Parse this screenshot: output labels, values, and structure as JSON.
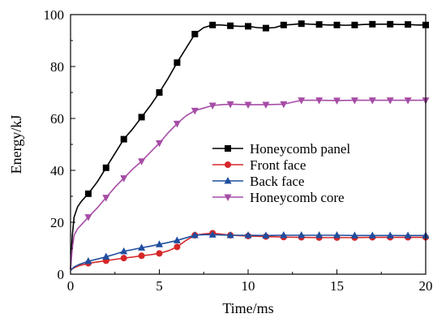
{
  "chart_data": {
    "type": "line",
    "xlabel": "Time/ms",
    "ylabel": "Energy/kJ",
    "xlim": [
      0,
      20
    ],
    "ylim": [
      0,
      100
    ],
    "xticks": [
      0,
      5,
      10,
      15,
      20
    ],
    "yticks": [
      0,
      20,
      40,
      60,
      80,
      100
    ],
    "legend_position": "center-right",
    "series": [
      {
        "name": "Honeycomb panel",
        "color": "#000000",
        "marker": "square",
        "x": [
          0,
          0.1,
          0.2,
          0.4,
          0.6,
          0.8,
          1,
          1.5,
          2,
          2.5,
          3,
          3.5,
          4,
          4.5,
          5,
          5.5,
          6,
          6.5,
          7,
          7.5,
          8,
          8.5,
          9,
          9.5,
          10,
          10.5,
          11,
          11.5,
          12,
          12.5,
          13,
          13.5,
          14,
          14.5,
          15,
          15.5,
          16,
          16.5,
          17,
          17.5,
          18,
          18.5,
          19,
          19.5,
          20
        ],
        "y": [
          2,
          15,
          22,
          26,
          28,
          29.5,
          31,
          35.5,
          41,
          46.5,
          52,
          56,
          60.5,
          65,
          70,
          75.5,
          81.5,
          87,
          92.5,
          95,
          96,
          96,
          95.7,
          95.5,
          95.5,
          95,
          94.8,
          95,
          96,
          96.2,
          96.5,
          96.3,
          96.2,
          96,
          96,
          95.9,
          96,
          96.2,
          96.3,
          96.3,
          96.3,
          96.2,
          96.2,
          96,
          96
        ],
        "marker_x": [
          1,
          2,
          3,
          4,
          5,
          6,
          7,
          8,
          9,
          10,
          11,
          12,
          13,
          14,
          15,
          16,
          17,
          18,
          19,
          20
        ],
        "marker_y": [
          31,
          41,
          52,
          60.5,
          70,
          81.5,
          92.5,
          96,
          95.7,
          95.5,
          94.8,
          96,
          96.5,
          96.2,
          96,
          96,
          96.3,
          96.3,
          96.2,
          96
        ]
      },
      {
        "name": "Front face",
        "color": "#d62728",
        "marker": "circle",
        "x": [
          0,
          0.2,
          0.5,
          1,
          1.5,
          2,
          2.5,
          3,
          3.5,
          4,
          4.5,
          5,
          5.5,
          6,
          6.5,
          7,
          7.5,
          8,
          8.5,
          9,
          10,
          11,
          12,
          13,
          14,
          15,
          16,
          17,
          18,
          19,
          20
        ],
        "y": [
          1.5,
          2.5,
          3.3,
          4.2,
          4.7,
          5.2,
          5.7,
          6.2,
          6.6,
          7.1,
          7.5,
          8.0,
          9.0,
          10.5,
          13,
          15,
          15.5,
          15.8,
          15.4,
          15,
          14.7,
          14.5,
          14.3,
          14.2,
          14.1,
          14.1,
          14.1,
          14.2,
          14.2,
          14.2,
          14.2
        ],
        "marker_x": [
          1,
          2,
          3,
          4,
          5,
          6,
          7,
          8,
          9,
          10,
          11,
          12,
          13,
          14,
          15,
          16,
          17,
          18,
          19,
          20
        ],
        "marker_y": [
          4.2,
          5.2,
          6.2,
          7.1,
          8.0,
          10.5,
          15,
          15.8,
          15,
          14.7,
          14.5,
          14.3,
          14.2,
          14.1,
          14.1,
          14.1,
          14.2,
          14.2,
          14.2,
          14.2
        ]
      },
      {
        "name": "Back face",
        "color": "#1f4e9e",
        "marker": "triangle-up",
        "x": [
          0,
          0.2,
          0.5,
          1,
          1.5,
          2,
          2.5,
          3,
          3.5,
          4,
          4.5,
          5,
          5.5,
          6,
          6.5,
          7,
          7.5,
          8,
          9,
          10,
          11,
          12,
          13,
          14,
          15,
          16,
          17,
          18,
          19,
          20
        ],
        "y": [
          1.5,
          2.8,
          3.8,
          5.0,
          5.8,
          6.7,
          7.7,
          8.8,
          9.5,
          10.2,
          10.8,
          11.5,
          12.2,
          13,
          14,
          15,
          15.2,
          15.2,
          15.0,
          15.0,
          14.9,
          15.0,
          15.0,
          15.0,
          15.0,
          14.9,
          14.9,
          14.9,
          14.9,
          14.9
        ],
        "marker_x": [
          1,
          2,
          3,
          4,
          5,
          6,
          7,
          8,
          9,
          10,
          11,
          12,
          13,
          14,
          15,
          16,
          17,
          18,
          19,
          20
        ],
        "marker_y": [
          5.0,
          6.7,
          8.8,
          10.2,
          11.5,
          13,
          15,
          15.2,
          15.0,
          15.0,
          14.9,
          15.0,
          15.0,
          15.0,
          15.0,
          14.9,
          14.9,
          14.9,
          14.9,
          14.9
        ]
      },
      {
        "name": "Honeycomb core",
        "color": "#a64ca6",
        "marker": "triangle-down",
        "x": [
          0,
          0.1,
          0.2,
          0.4,
          0.6,
          0.8,
          1,
          1.5,
          2,
          2.5,
          3,
          3.5,
          4,
          4.5,
          5,
          5.5,
          6,
          6.5,
          7,
          7.5,
          8,
          8.5,
          9,
          10,
          11,
          12,
          13,
          14,
          15,
          16,
          17,
          18,
          19,
          20
        ],
        "y": [
          2,
          10,
          15,
          17.5,
          19,
          20.5,
          22,
          25.5,
          29.5,
          33.5,
          37,
          40.5,
          43.5,
          47,
          50.5,
          54.5,
          58,
          61,
          63,
          64,
          65,
          65.3,
          65.5,
          65.3,
          65.3,
          65.5,
          67,
          67,
          66.9,
          67,
          67,
          67,
          67,
          67
        ],
        "marker_x": [
          1,
          2,
          3,
          4,
          5,
          6,
          7,
          8,
          9,
          10,
          11,
          12,
          13,
          14,
          15,
          16,
          17,
          18,
          19,
          20
        ],
        "marker_y": [
          22,
          29.5,
          37,
          43.5,
          50.5,
          58,
          63,
          65,
          65.5,
          65.3,
          65.3,
          65.5,
          67,
          67,
          66.9,
          67,
          67,
          67,
          67,
          67
        ]
      }
    ]
  }
}
